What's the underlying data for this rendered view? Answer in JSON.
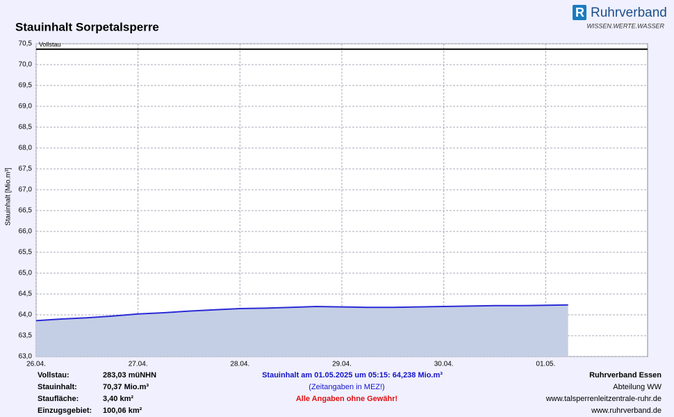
{
  "logo": {
    "name": "Ruhrverband",
    "slogan": "WISSEN.WERTE.WASSER"
  },
  "chart_data": {
    "type": "area",
    "title": "Stauinhalt Sorpetalsperre",
    "y_label": "Stauinhalt [Mio.m³]",
    "x": [
      0,
      0.25,
      0.5,
      0.75,
      1.0,
      1.25,
      1.5,
      1.75,
      2.0,
      2.25,
      2.5,
      2.75,
      3.0,
      3.25,
      3.5,
      3.75,
      4.0,
      4.25,
      4.5,
      4.75,
      5.0,
      5.22
    ],
    "values": [
      63.86,
      63.9,
      63.93,
      63.97,
      64.02,
      64.05,
      64.09,
      64.12,
      64.15,
      64.16,
      64.18,
      64.2,
      64.19,
      64.18,
      64.18,
      64.19,
      64.2,
      64.21,
      64.22,
      64.22,
      64.23,
      64.238
    ],
    "color": "#2a2ad6",
    "fill_color": "#c4cfe5",
    "reference_line": {
      "value": 70.37,
      "label": "Vollstau",
      "color": "#000000"
    },
    "xlim": [
      0,
      6
    ],
    "xticks": [
      {
        "value": 0,
        "label": "26.04."
      },
      {
        "value": 1,
        "label": "27.04."
      },
      {
        "value": 2,
        "label": "28.04."
      },
      {
        "value": 3,
        "label": "29.04."
      },
      {
        "value": 4,
        "label": "30.04."
      },
      {
        "value": 5,
        "label": "01.05."
      }
    ],
    "ylim": [
      63,
      70.5
    ],
    "yticks": [
      {
        "value": 63,
        "label": "63,0"
      },
      {
        "value": 63.5,
        "label": "63,5"
      },
      {
        "value": 64,
        "label": "64,0"
      },
      {
        "value": 64.5,
        "label": "64,5"
      },
      {
        "value": 65,
        "label": "65,0"
      },
      {
        "value": 65.5,
        "label": "65,5"
      },
      {
        "value": 66,
        "label": "66,0"
      },
      {
        "value": 66.5,
        "label": "66,5"
      },
      {
        "value": 67,
        "label": "67,0"
      },
      {
        "value": 67.5,
        "label": "67,5"
      },
      {
        "value": 68,
        "label": "68,0"
      },
      {
        "value": 68.5,
        "label": "68,5"
      },
      {
        "value": 69,
        "label": "69,0"
      },
      {
        "value": 69.5,
        "label": "69,5"
      },
      {
        "value": 70,
        "label": "70,0"
      },
      {
        "value": 70.5,
        "label": "70,5"
      }
    ],
    "grid": true
  },
  "footer": {
    "facts": [
      [
        "Vollstau:",
        "283,03 müNHN"
      ],
      [
        "Stauinhalt:",
        "70,37 Mio.m³"
      ],
      [
        "Staufläche:",
        "3,40 km²"
      ],
      [
        "Einzugsgebiet:",
        "100,06 km²"
      ]
    ],
    "current": "Stauinhalt am 01.05.2025 um 05:15:  64,238 Mio.m³",
    "timezone_note": "(Zeitangaben in MEZ!)",
    "disclaimer": "Alle Angaben ohne Gewähr!",
    "org": [
      "Ruhrverband Essen",
      "Abteilung WW",
      "www.talsperrenleitzentrale-ruhr.de",
      "www.ruhrverband.de"
    ]
  }
}
